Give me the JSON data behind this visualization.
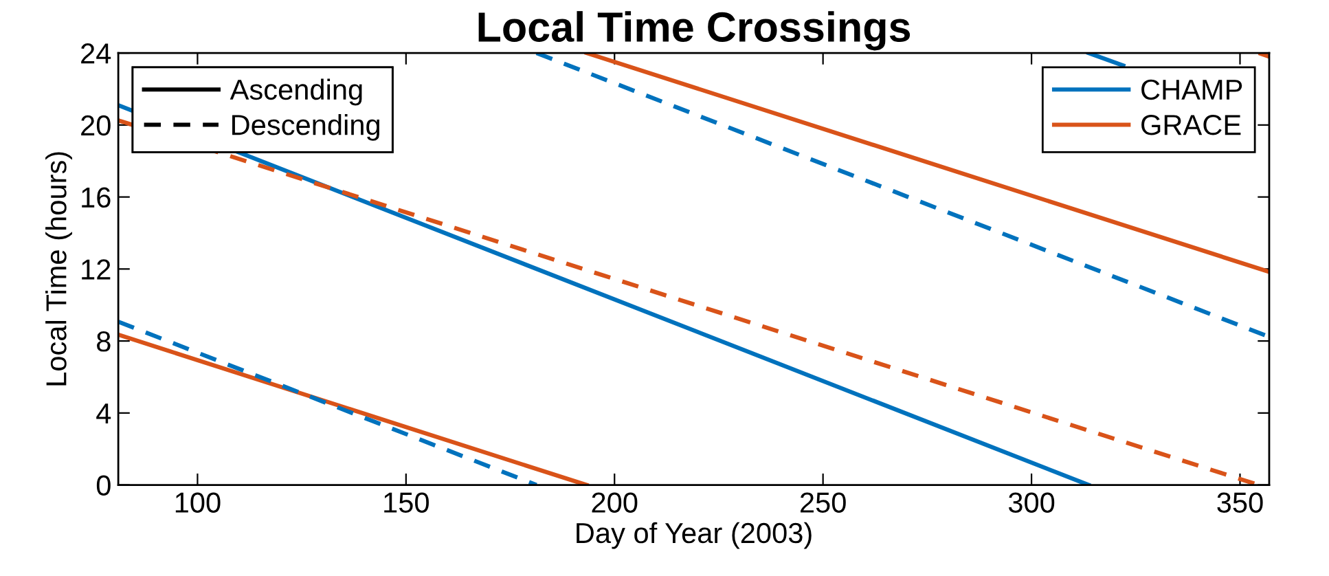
{
  "chart_data": {
    "type": "line",
    "title": "Local Time Crossings",
    "xlabel": "Day of Year (2003)",
    "ylabel": "Local Time (hours)",
    "xlim": [
      81,
      357
    ],
    "ylim": [
      0,
      24
    ],
    "xticks": [
      100,
      150,
      200,
      250,
      300,
      350
    ],
    "yticks": [
      0,
      4,
      8,
      12,
      16,
      20,
      24
    ],
    "grid": false,
    "legend": "top right",
    "series": [
      {
        "name": "CHAMP",
        "color": "#0072bd",
        "line_style": "solid",
        "x": [
          81,
          313.7
        ],
        "values": [
          21.1,
          0
        ]
      },
      {
        "color": "#0072bd",
        "line_style": "solid",
        "x": [
          313.7,
          322
        ],
        "values": [
          24,
          23.3
        ]
      },
      {
        "name": "GRACE",
        "color": "#d95319",
        "line_style": "solid",
        "x": [
          81,
          193.3
        ],
        "values": [
          8.35,
          0
        ]
      },
      {
        "color": "#d95319",
        "line_style": "solid",
        "x": [
          193.3,
          357
        ],
        "values": [
          24,
          11.84
        ]
      },
      {
        "color": "#0072bd",
        "line_style": "dashed",
        "x": [
          81,
          181.3
        ],
        "values": [
          9.07,
          0
        ]
      },
      {
        "color": "#0072bd",
        "line_style": "dashed",
        "x": [
          181.3,
          357
        ],
        "values": [
          24,
          8.23
        ]
      },
      {
        "color": "#d95319",
        "line_style": "dashed",
        "x": [
          81,
          354.5
        ],
        "values": [
          20.26,
          0
        ]
      },
      {
        "color": "#d95319",
        "line_style": "dashed",
        "x": [
          354.5,
          357
        ],
        "values": [
          24,
          23.8
        ]
      },
      {
        "name": "Ascending",
        "color": "#000000",
        "line_style": "solid"
      },
      {
        "name": "Descending",
        "color": "#000000",
        "line_style": "dashed"
      }
    ]
  }
}
